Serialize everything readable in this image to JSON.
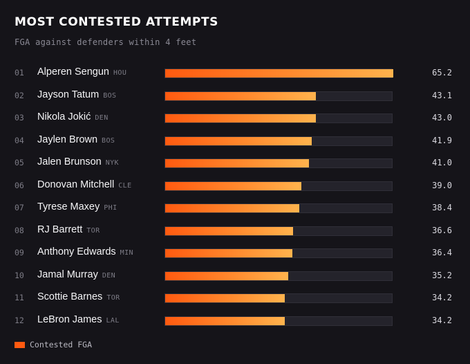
{
  "header": {
    "title": "MOST CONTESTED ATTEMPTS",
    "subtitle": "FGA against defenders within 4 feet"
  },
  "chart_data": {
    "type": "bar",
    "orientation": "horizontal",
    "title": "MOST CONTESTED ATTEMPTS",
    "subtitle": "FGA against defenders within 4 feet",
    "xlim": [
      0,
      65.2
    ],
    "series": [
      {
        "name": "Contested FGA",
        "color": "#ff5a10"
      }
    ],
    "rows": [
      {
        "rank": "01",
        "player": "Alperen Sengun",
        "team": "HOU",
        "value": 65.2,
        "label": "65.2"
      },
      {
        "rank": "02",
        "player": "Jayson Tatum",
        "team": "BOS",
        "value": 43.1,
        "label": "43.1"
      },
      {
        "rank": "03",
        "player": "Nikola Jokić",
        "team": "DEN",
        "value": 43.0,
        "label": "43.0"
      },
      {
        "rank": "04",
        "player": "Jaylen Brown",
        "team": "BOS",
        "value": 41.9,
        "label": "41.9"
      },
      {
        "rank": "05",
        "player": "Jalen Brunson",
        "team": "NYK",
        "value": 41.0,
        "label": "41.0"
      },
      {
        "rank": "06",
        "player": "Donovan Mitchell",
        "team": "CLE",
        "value": 39.0,
        "label": "39.0"
      },
      {
        "rank": "07",
        "player": "Tyrese Maxey",
        "team": "PHI",
        "value": 38.4,
        "label": "38.4"
      },
      {
        "rank": "08",
        "player": "RJ Barrett",
        "team": "TOR",
        "value": 36.6,
        "label": "36.6"
      },
      {
        "rank": "09",
        "player": "Anthony Edwards",
        "team": "MIN",
        "value": 36.4,
        "label": "36.4"
      },
      {
        "rank": "10",
        "player": "Jamal Murray",
        "team": "DEN",
        "value": 35.2,
        "label": "35.2"
      },
      {
        "rank": "11",
        "player": "Scottie Barnes",
        "team": "TOR",
        "value": 34.2,
        "label": "34.2"
      },
      {
        "rank": "12",
        "player": "LeBron James",
        "team": "LAL",
        "value": 34.2,
        "label": "34.2"
      }
    ],
    "legend": {
      "label": "Contested FGA",
      "placement": "bottom-left"
    }
  }
}
